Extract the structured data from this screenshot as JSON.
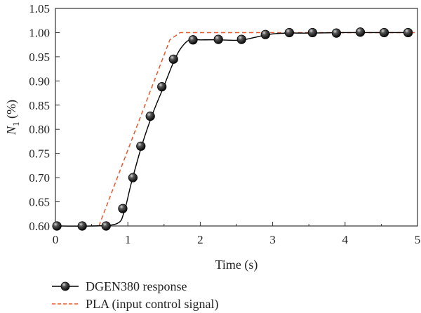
{
  "chart_data": {
    "type": "line",
    "xlabel": "Time (s)",
    "ylabel_symbol": "N",
    "ylabel_subscript": "1",
    "ylabel_unit": " (%)",
    "xlim": [
      0,
      5
    ],
    "ylim": [
      0.6,
      1.05
    ],
    "x_ticks": [
      0,
      1,
      2,
      3,
      4,
      5
    ],
    "x_tick_labels": [
      "0",
      "1",
      "2",
      "3",
      "4",
      "5"
    ],
    "y_ticks": [
      0.6,
      0.65,
      0.7,
      0.75,
      0.8,
      0.85,
      0.9,
      0.95,
      1.0,
      1.05
    ],
    "y_tick_labels": [
      "0.60",
      "0.65",
      "0.70",
      "0.75",
      "0.80",
      "0.85",
      "0.90",
      "0.95",
      "1.00",
      "1.05"
    ],
    "grid": false,
    "legend_position": "bottom",
    "series": [
      {
        "name": "DGEN380 response",
        "style": "solid-with-markers",
        "color": "#000000",
        "marker_color": "#2a2a2a",
        "x": [
          0.0,
          0.5,
          0.85,
          0.95,
          1.05,
          1.2,
          1.35,
          1.5,
          1.62,
          1.72,
          1.85,
          2.0,
          2.25,
          2.5,
          2.6,
          2.75,
          2.9,
          3.05,
          3.25,
          3.5,
          4.0,
          4.5,
          4.9
        ],
        "y": [
          0.6,
          0.6,
          0.605,
          0.63,
          0.69,
          0.77,
          0.835,
          0.89,
          0.935,
          0.965,
          0.985,
          0.985,
          0.985,
          0.984,
          0.985,
          0.99,
          0.995,
          0.998,
          0.999,
          0.999,
          1.0,
          1.0,
          1.0
        ],
        "markers_x": [
          0.02,
          0.37,
          0.7,
          0.93,
          1.07,
          1.18,
          1.31,
          1.47,
          1.63,
          1.9,
          2.25,
          2.57,
          2.9,
          3.23,
          3.55,
          3.88,
          4.21,
          4.54,
          4.87
        ],
        "markers_y": [
          0.6,
          0.6,
          0.6,
          0.636,
          0.7,
          0.765,
          0.827,
          0.888,
          0.945,
          0.985,
          0.986,
          0.986,
          0.996,
          1.0,
          1.0,
          0.999,
          1.001,
          1.0,
          1.0
        ]
      },
      {
        "name": "PLA (input control signal)",
        "style": "dashed",
        "color": "#e8582e",
        "x": [
          0.6,
          1.58,
          1.72,
          5.0
        ],
        "y": [
          0.6,
          0.985,
          1.0,
          1.0
        ]
      }
    ]
  }
}
